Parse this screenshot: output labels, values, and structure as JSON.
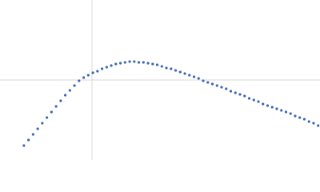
{
  "chart_data": {
    "type": "scatter",
    "color": "#3d68b5",
    "grid": true,
    "xlim": [
      0,
      3.48
    ],
    "xticks": [
      1
    ],
    "ylim": [
      -1,
      1
    ],
    "yticks": [
      0
    ],
    "x": [
      0.26,
      0.31,
      0.36,
      0.41,
      0.46,
      0.51,
      0.56,
      0.61,
      0.66,
      0.71,
      0.76,
      0.81,
      0.86,
      0.91,
      0.96,
      1.01,
      1.06,
      1.11,
      1.16,
      1.21,
      1.26,
      1.31,
      1.36,
      1.41,
      1.46,
      1.51,
      1.56,
      1.61,
      1.66,
      1.71,
      1.76,
      1.81,
      1.86,
      1.91,
      1.96,
      2.01,
      2.06,
      2.11,
      2.16,
      2.21,
      2.26,
      2.31,
      2.36,
      2.41,
      2.46,
      2.51,
      2.56,
      2.61,
      2.66,
      2.71,
      2.76,
      2.81,
      2.86,
      2.91,
      2.96,
      3.01,
      3.06,
      3.11,
      3.16,
      3.21,
      3.26,
      3.31,
      3.36,
      3.41,
      3.46
    ],
    "values": [
      -0.82,
      -0.75,
      -0.68,
      -0.61,
      -0.54,
      -0.47,
      -0.4,
      -0.33,
      -0.26,
      -0.19,
      -0.13,
      -0.07,
      -0.01,
      0.03,
      0.06,
      0.09,
      0.11,
      0.14,
      0.16,
      0.18,
      0.2,
      0.21,
      0.22,
      0.23,
      0.23,
      0.22,
      0.22,
      0.21,
      0.2,
      0.19,
      0.17,
      0.15,
      0.14,
      0.12,
      0.1,
      0.08,
      0.06,
      0.04,
      0.02,
      -0.01,
      -0.03,
      -0.05,
      -0.07,
      -0.09,
      -0.11,
      -0.14,
      -0.16,
      -0.18,
      -0.2,
      -0.23,
      -0.25,
      -0.27,
      -0.3,
      -0.32,
      -0.34,
      -0.36,
      -0.38,
      -0.4,
      -0.42,
      -0.45,
      -0.47,
      -0.49,
      -0.52,
      -0.54,
      -0.57
    ]
  }
}
